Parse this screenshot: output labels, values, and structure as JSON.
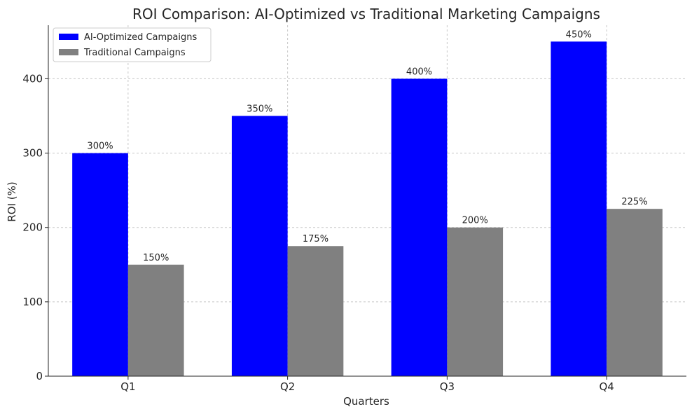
{
  "chart_data": {
    "type": "bar",
    "title": "ROI Comparison: AI-Optimized vs Traditional Marketing Campaigns",
    "xlabel": "Quarters",
    "ylabel": "ROI (%)",
    "categories": [
      "Q1",
      "Q2",
      "Q3",
      "Q4"
    ],
    "series": [
      {
        "name": "AI-Optimized Campaigns",
        "values": [
          300,
          350,
          400,
          450
        ],
        "labels": [
          "300%",
          "350%",
          "400%",
          "450%"
        ],
        "color": "#0000ff"
      },
      {
        "name": "Traditional Campaigns",
        "values": [
          150,
          175,
          200,
          225
        ],
        "labels": [
          "150%",
          "175%",
          "200%",
          "225%"
        ],
        "color": "#808080"
      }
    ],
    "ylim": [
      0,
      472
    ],
    "yticks": [
      0,
      100,
      200,
      300,
      400
    ],
    "grid": true,
    "legend_position": "top-left"
  }
}
